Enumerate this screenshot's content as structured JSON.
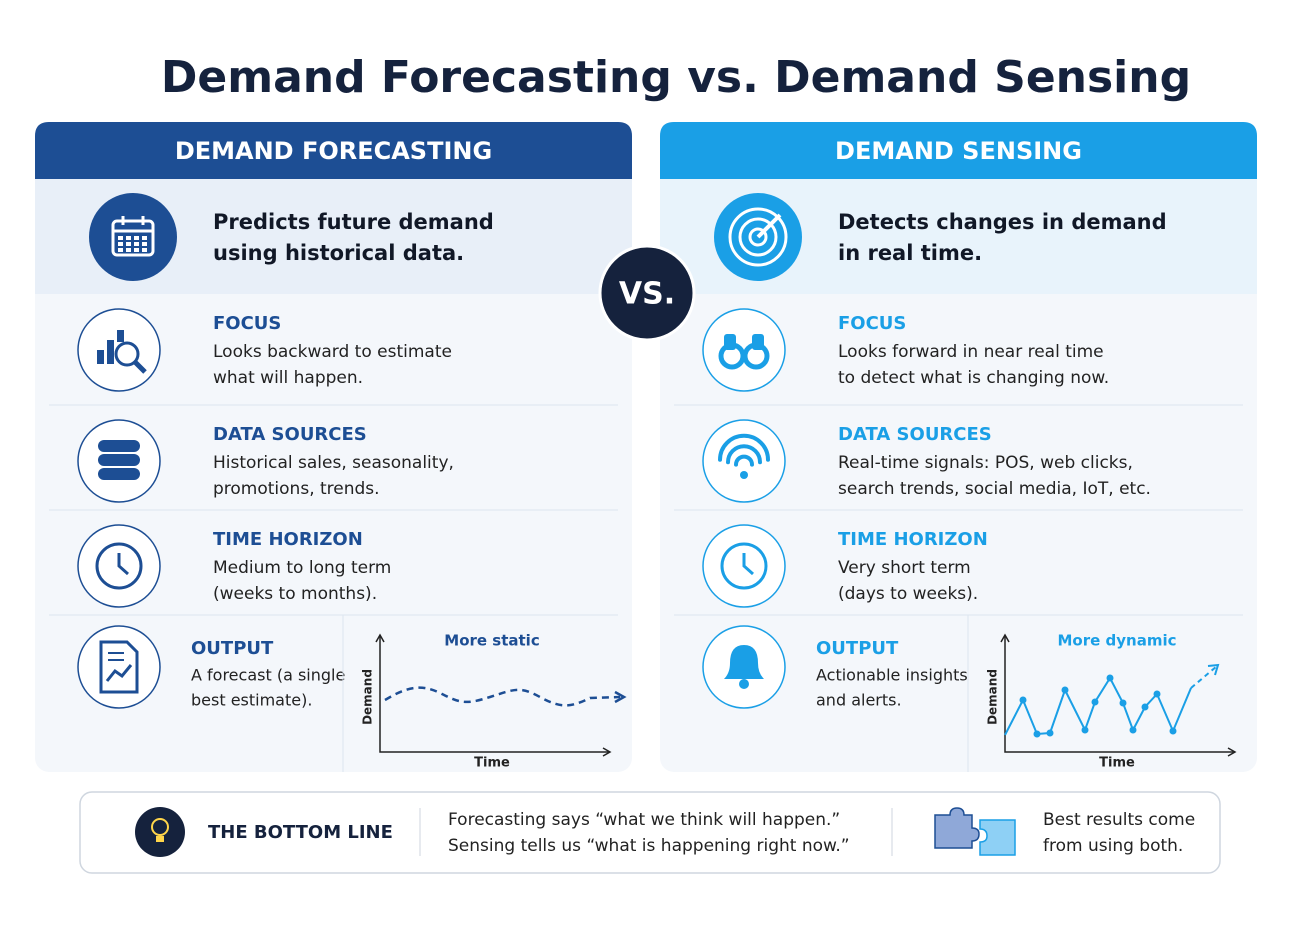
{
  "title": "Demand Forecasting vs. Demand Sensing",
  "vs": "VS.",
  "panels": [
    {
      "header": "DEMAND FORECASTING",
      "summary": [
        "Predicts future demand",
        "using historical data."
      ],
      "rows": [
        {
          "label": "FOCUS",
          "lines": [
            "Looks backward to estimate",
            "what will happen."
          ]
        },
        {
          "label": "DATA SOURCES",
          "lines": [
            "Historical sales, seasonality,",
            "promotions, trends."
          ]
        },
        {
          "label": "TIME HORIZON",
          "lines": [
            "Medium to long term",
            "(weeks to months)."
          ]
        }
      ],
      "output": {
        "label": "OUTPUT",
        "lines": [
          "A forecast (a single",
          "best estimate)."
        ],
        "chart": {
          "title": "More static",
          "x_label": "Time",
          "y_label": "Demand"
        }
      }
    },
    {
      "header": "DEMAND SENSING",
      "summary": [
        "Detects changes in demand",
        "in real time."
      ],
      "rows": [
        {
          "label": "FOCUS",
          "lines": [
            "Looks forward in near real time",
            "to detect what is changing now."
          ]
        },
        {
          "label": "DATA SOURCES",
          "lines": [
            "Real-time signals: POS, web clicks,",
            "search trends, social media, IoT, etc."
          ]
        },
        {
          "label": "TIME HORIZON",
          "lines": [
            "Very short term",
            "(days to weeks)."
          ]
        }
      ],
      "output": {
        "label": "OUTPUT",
        "lines": [
          "Actionable insights",
          "and alerts."
        ],
        "chart": {
          "title": "More dynamic",
          "x_label": "Time",
          "y_label": "Demand"
        }
      }
    }
  ],
  "bottom": {
    "label": "THE BOTTOM LINE",
    "quote": [
      "Forecasting says “what we think will happen.”",
      "Sensing tells us “what is happening right now.”"
    ],
    "conclusion": [
      "Best results come",
      "from using both."
    ]
  }
}
